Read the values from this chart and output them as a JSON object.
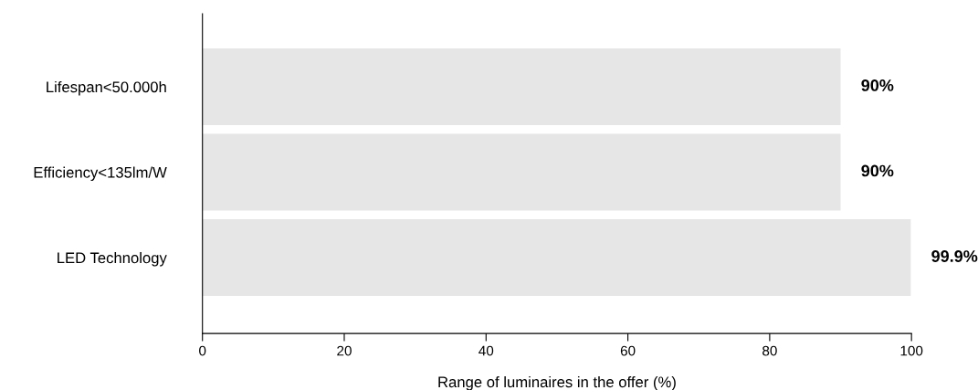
{
  "chart_data": {
    "type": "bar",
    "orientation": "horizontal",
    "xlabel": "Range of luminaires in the offer (%)",
    "categories": [
      "Lifespan<50.000h",
      "Efficiency<135lm/W",
      "LED Technology"
    ],
    "values": [
      90,
      90,
      99.9
    ],
    "color": "#e6e6e6",
    "value_labels": [
      "90%",
      "90%",
      "99.9%"
    ],
    "xlim": [
      0,
      100
    ],
    "xticks": [
      0,
      20,
      40,
      60,
      80,
      100
    ],
    "grid": false,
    "legend": false
  }
}
